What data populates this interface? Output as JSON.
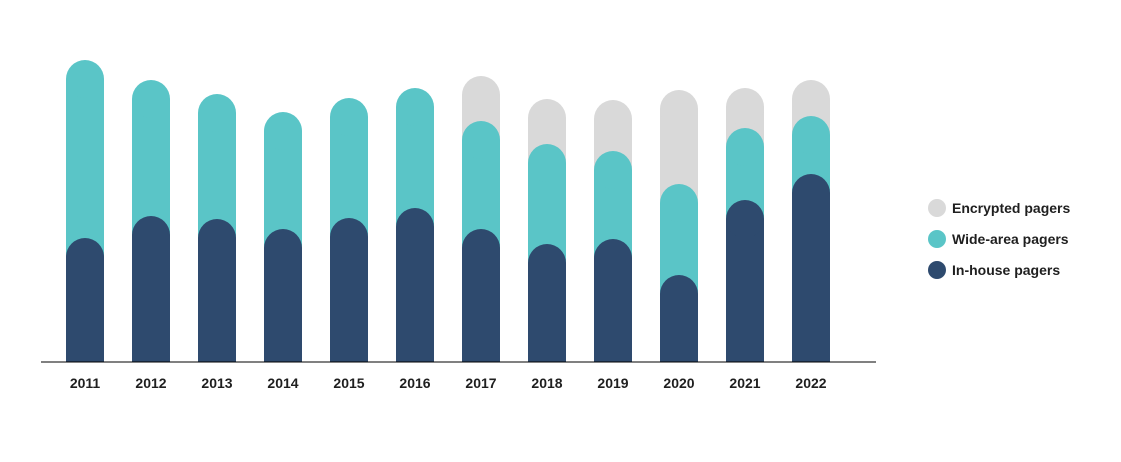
{
  "chart_data": {
    "type": "bar",
    "stacked": true,
    "title": "",
    "xlabel": "",
    "ylabel": "",
    "ylim": [
      0,
      310
    ],
    "grid": false,
    "legend_position": "right",
    "categories": [
      "2011",
      "2012",
      "2013",
      "2014",
      "2015",
      "2016",
      "2017",
      "2018",
      "2019",
      "2020",
      "2021",
      "2022"
    ],
    "series": [
      {
        "name": "In-house pagers",
        "color": "#2e4a6e",
        "values": [
          124,
          146,
          143,
          133,
          144,
          154,
          133,
          118,
          123,
          87,
          162,
          188
        ]
      },
      {
        "name": "Wide-area pagers",
        "color": "#5ac5c7",
        "values": [
          178,
          136,
          125,
          117,
          120,
          120,
          108,
          100,
          88,
          91,
          72,
          58
        ]
      },
      {
        "name": "Encrypted pagers",
        "color": "#d9d9d9",
        "values": [
          0,
          0,
          0,
          0,
          0,
          0,
          45,
          45,
          51,
          94,
          40,
          36
        ]
      }
    ]
  }
}
